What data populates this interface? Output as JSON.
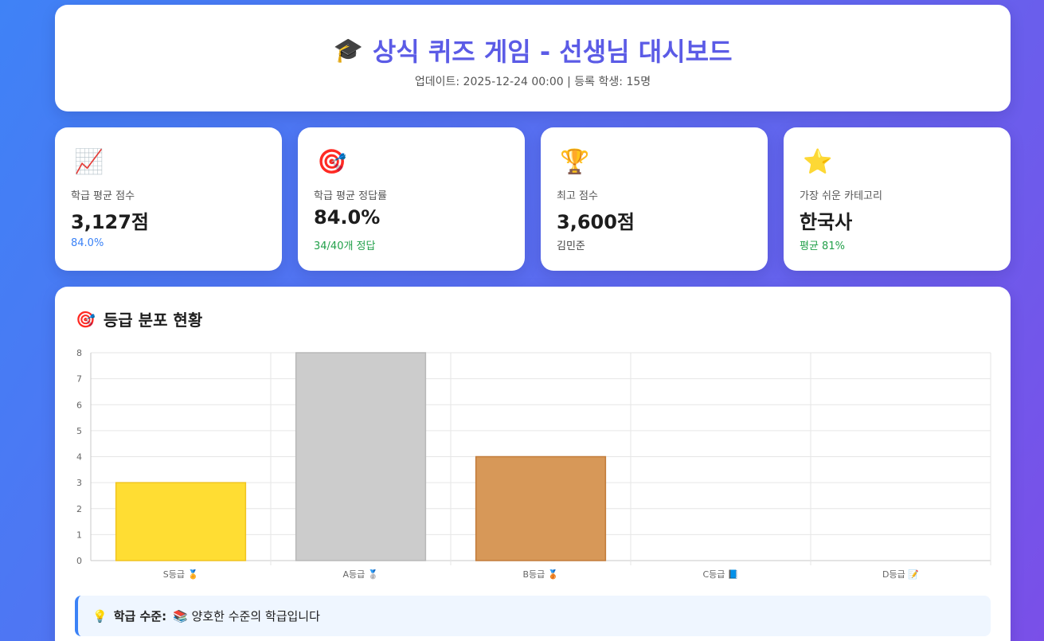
{
  "header": {
    "icon": "graduation-cap-icon",
    "title": "상식 퀴즈 게임 - 선생님 대시보드",
    "subtitle": "업데이트: 2025-12-24 00:00 | 등록 학생: 15명"
  },
  "stats": [
    {
      "icon": "📈",
      "icon_name": "chart-increasing-icon",
      "label": "학급 평균 점수",
      "value": "3,127점",
      "note": "84.0%",
      "note_color": "#3b82f6"
    },
    {
      "icon": "🎯",
      "icon_name": "target-icon",
      "label": "학급 평균 정답률",
      "value": "84.0%",
      "note": "34/40개 정답",
      "note_color": "#22a04a"
    },
    {
      "icon": "🏆",
      "icon_name": "trophy-icon",
      "label": "최고 점수",
      "value": "3,600점",
      "note": "김민준",
      "note_color": "#444444"
    },
    {
      "icon": "⭐",
      "icon_name": "star-icon",
      "label": "가장 쉬운 카테고리",
      "value": "한국사",
      "note": "평균 81%",
      "note_color": "#22a04a"
    }
  ],
  "chart_section": {
    "icon": "🎯",
    "title": "등급 분포 현황"
  },
  "chart_data": {
    "type": "bar",
    "categories": [
      "S등급 🏅",
      "A등급 🥈",
      "B등급 🥉",
      "C등급 📘",
      "D등급 📝"
    ],
    "values": [
      3,
      8,
      4,
      0,
      0
    ],
    "colors": [
      "#ffdd33",
      "#cccccc",
      "#d79858",
      "#7ab8f5",
      "#f28b8b"
    ],
    "borders": [
      "#f0c420",
      "#b8b8b8",
      "#c27c3a",
      "#5a9ee0",
      "#e06060"
    ],
    "ylim": [
      0,
      8
    ],
    "yticks": [
      0,
      1,
      2,
      3,
      4,
      5,
      6,
      7,
      8
    ],
    "grid": true
  },
  "info": {
    "icon": "💡",
    "label": "학급 수준:",
    "text": "📚 양호한 수준의 학급입니다"
  }
}
